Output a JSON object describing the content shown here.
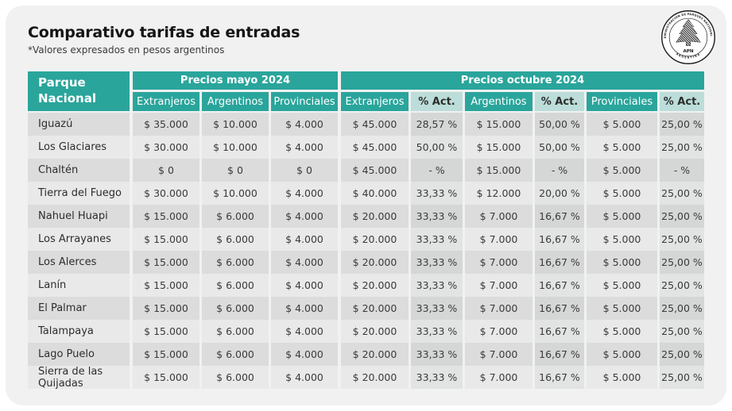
{
  "header": {
    "title": "Comparativo tarifas de entradas",
    "subtitle": "*Valores expresados en pesos argentinos"
  },
  "logo": {
    "ring_text": "ADMINISTRACIÓN DE PARQUES NACIONALES",
    "acronym": "APN",
    "country": "ARGENTINA"
  },
  "colors": {
    "teal": "#2aa59b",
    "teal_light": "#bcddd9",
    "row_odd": "#dcdcdc",
    "row_even": "#e9e9e9",
    "card_bg": "#f1f1f2",
    "header_text": "#ffffff",
    "body_text": "#3a3a3a"
  },
  "chart_data": {
    "type": "table",
    "title": "Comparativo tarifas de entradas",
    "subtitle": "*Valores expresados en pesos argentinos",
    "park_header": "Parque\nNacional",
    "groups": [
      {
        "label": "Precios mayo 2024",
        "columns": [
          "Extranjeros",
          "Argentinos",
          "Provinciales"
        ]
      },
      {
        "label": "Precios octubre 2024",
        "columns": [
          "Extranjeros",
          "% Act.",
          "Argentinos",
          "% Act.",
          "Provinciales",
          "% Act."
        ]
      }
    ],
    "subcolumns": [
      "Extranjeros",
      "Argentinos",
      "Provinciales",
      "Extranjeros",
      "% Act.",
      "Argentinos",
      "% Act.",
      "Provinciales",
      "% Act."
    ],
    "rows": [
      {
        "park": "Iguazú",
        "values": [
          "$ 35.000",
          "$ 10.000",
          "$ 4.000",
          "$ 45.000",
          "28,57 %",
          "$ 15.000",
          "50,00 %",
          "$ 5.000",
          "25,00 %"
        ]
      },
      {
        "park": "Los Glaciares",
        "values": [
          "$ 30.000",
          "$ 10.000",
          "$ 4.000",
          "$ 45.000",
          "50,00 %",
          "$ 15.000",
          "50,00 %",
          "$ 5.000",
          "25,00 %"
        ]
      },
      {
        "park": "Chaltén",
        "values": [
          "$ 0",
          "$ 0",
          "$ 0",
          "$ 45.000",
          "- %",
          "$ 15.000",
          "- %",
          "$ 5.000",
          "- %"
        ]
      },
      {
        "park": "Tierra del Fuego",
        "values": [
          "$ 30.000",
          "$ 10.000",
          "$ 4.000",
          "$ 40.000",
          "33,33 %",
          "$ 12.000",
          "20,00 %",
          "$ 5.000",
          "25,00 %"
        ]
      },
      {
        "park": "Nahuel Huapi",
        "values": [
          "$ 15.000",
          "$ 6.000",
          "$ 4.000",
          "$ 20.000",
          "33,33 %",
          "$ 7.000",
          "16,67 %",
          "$ 5.000",
          "25,00 %"
        ]
      },
      {
        "park": "Los Arrayanes",
        "values": [
          "$ 15.000",
          "$ 6.000",
          "$ 4.000",
          "$ 20.000",
          "33,33 %",
          "$ 7.000",
          "16,67 %",
          "$ 5.000",
          "25,00 %"
        ]
      },
      {
        "park": "Los Alerces",
        "values": [
          "$ 15.000",
          "$ 6.000",
          "$ 4.000",
          "$ 20.000",
          "33,33 %",
          "$ 7.000",
          "16,67 %",
          "$ 5.000",
          "25,00 %"
        ]
      },
      {
        "park": "Lanín",
        "values": [
          "$ 15.000",
          "$ 6.000",
          "$ 4.000",
          "$ 20.000",
          "33,33 %",
          "$ 7.000",
          "16,67 %",
          "$ 5.000",
          "25,00 %"
        ]
      },
      {
        "park": "El Palmar",
        "values": [
          "$ 15.000",
          "$ 6.000",
          "$ 4.000",
          "$ 20.000",
          "33,33 %",
          "$ 7.000",
          "16,67 %",
          "$ 5.000",
          "25,00 %"
        ]
      },
      {
        "park": "Talampaya",
        "values": [
          "$ 15.000",
          "$ 6.000",
          "$ 4.000",
          "$ 20.000",
          "33,33 %",
          "$ 7.000",
          "16,67 %",
          "$ 5.000",
          "25,00 %"
        ]
      },
      {
        "park": "Lago Puelo",
        "values": [
          "$ 15.000",
          "$ 6.000",
          "$ 4.000",
          "$ 20.000",
          "33,33 %",
          "$ 7.000",
          "16,67 %",
          "$ 5.000",
          "25,00 %"
        ]
      },
      {
        "park": "Sierra de las Quijadas",
        "values": [
          "$ 15.000",
          "$ 6.000",
          "$ 4.000",
          "$ 20.000",
          "33,33 %",
          "$ 7.000",
          "16,67 %",
          "$ 5.000",
          "25,00 %"
        ]
      }
    ]
  }
}
